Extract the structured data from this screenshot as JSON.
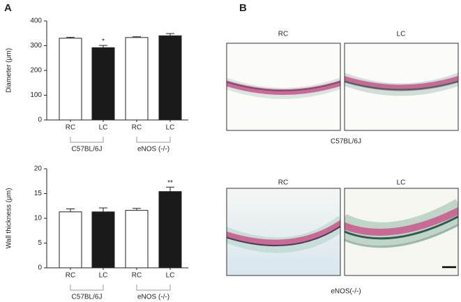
{
  "panel_labels": [
    "A",
    "B"
  ],
  "chart_data": [
    {
      "type": "bar",
      "ylabel": "Diameter (μm)",
      "categories": [
        "RC",
        "LC",
        "RC",
        "LC"
      ],
      "groups": [
        "C57BL/6J",
        "eNOS (-/-)"
      ],
      "values": [
        330,
        292,
        333,
        340
      ],
      "errors": [
        4,
        9,
        3,
        9
      ],
      "annotations": [
        null,
        "*",
        null,
        null
      ],
      "colors": [
        "#ffffff",
        "#1a1a1a",
        "#ffffff",
        "#1a1a1a"
      ],
      "ylim": [
        0,
        400
      ],
      "yticks": [
        0,
        100,
        200,
        300,
        400
      ]
    },
    {
      "type": "bar",
      "ylabel": "Wall thickness (μm)",
      "categories": [
        "RC",
        "LC",
        "RC",
        "LC"
      ],
      "groups": [
        "C57BL/6J",
        "eNOS (-/-)"
      ],
      "values": [
        11.3,
        11.3,
        11.6,
        15.4
      ],
      "errors": [
        0.6,
        0.8,
        0.4,
        0.9
      ],
      "annotations": [
        null,
        null,
        null,
        "**"
      ],
      "colors": [
        "#ffffff",
        "#1a1a1a",
        "#ffffff",
        "#1a1a1a"
      ],
      "ylim": [
        0,
        20
      ],
      "yticks": [
        0,
        5,
        10,
        15,
        20
      ]
    }
  ],
  "micrographs": {
    "rows": [
      {
        "label": "C57BL/6J",
        "columns": [
          "RC",
          "LC"
        ]
      },
      {
        "label": "eNOS(-/-)",
        "columns": [
          "RC",
          "LC"
        ]
      }
    ]
  }
}
